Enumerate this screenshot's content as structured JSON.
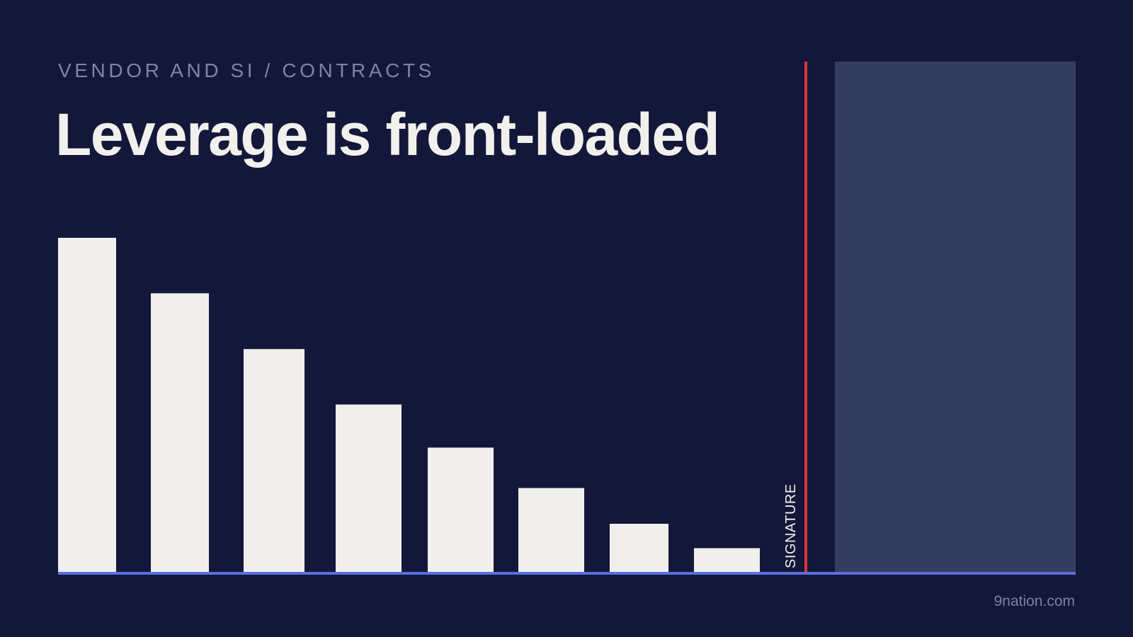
{
  "header": {
    "eyebrow": "VENDOR AND SI / CONTRACTS",
    "title": "Leverage is front-loaded"
  },
  "footer": {
    "source": "9nation.com"
  },
  "chart_data": {
    "type": "bar",
    "title": "",
    "xlabel": "",
    "ylabel": "",
    "categories": [
      "",
      "",
      "",
      "",
      "",
      "",
      "",
      ""
    ],
    "values": [
      100,
      83.4,
      66.7,
      50.1,
      37.2,
      25.1,
      14.4,
      7.1
    ],
    "ylim": [
      0,
      100
    ],
    "grid": false,
    "legend": "none",
    "annotations": {
      "signature_label": "SIGNATURE"
    },
    "post_signature_region": true,
    "colors": {
      "background": "#13183a",
      "bar": "#f0efeb",
      "baseline": "#5b6ee0",
      "signature_line": "#d93636",
      "post_signature_region": "#353d60"
    }
  }
}
